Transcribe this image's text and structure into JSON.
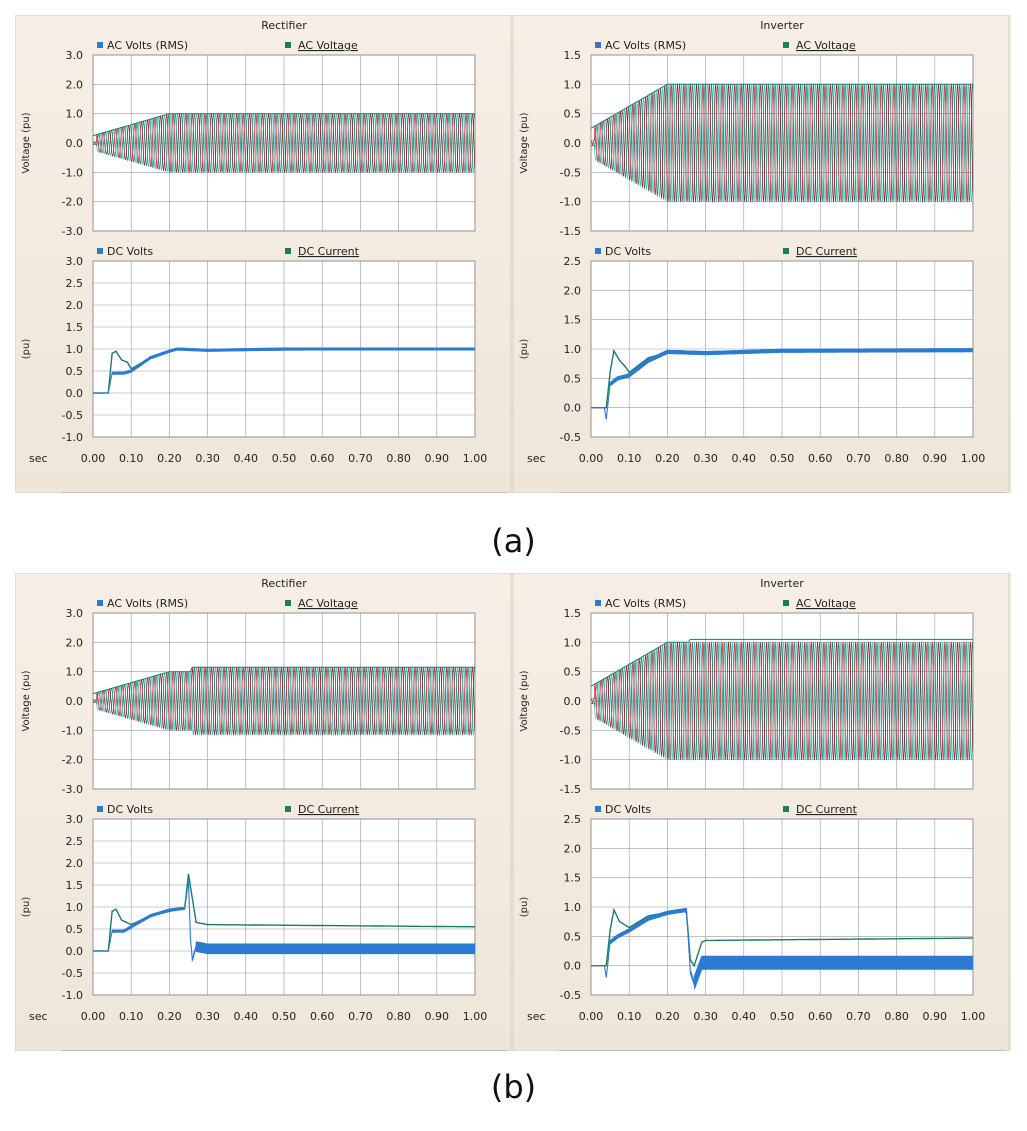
{
  "figure_labels": [
    "(a)",
    "(b)"
  ],
  "colors": {
    "rms": "#2b7bd1",
    "wave_green": "#1e7a63",
    "wave_cyan": "#3bc3c3",
    "wave_red": "#b01020",
    "dc_volts": "#2b7bd1",
    "dc_current": "#1e7a63",
    "grid": "#9a9a9a"
  },
  "chart_data": [
    {
      "type": "line",
      "figure": "(a)",
      "panel": "Rectifier",
      "x_axis": {
        "label": "sec",
        "range": [
          0,
          1.0
        ],
        "ticks": [
          "0.00",
          "0.10",
          "0.20",
          "0.30",
          "0.40",
          "0.50",
          "0.60",
          "0.70",
          "0.80",
          "0.90",
          "1.00"
        ]
      },
      "subplots": [
        {
          "ylabel": "Voltage (pu)",
          "ylim": [
            -3,
            3
          ],
          "yticks": [
            "3.0",
            "2.0",
            "1.0",
            "0.0",
            "-1.0",
            "-2.0",
            "-3.0"
          ],
          "legend": [
            "AC Volts (RMS)",
            "AC Voltage"
          ],
          "series": [
            {
              "name": "AC Volts (RMS)",
              "kind": "rms",
              "steady": 1.0
            },
            {
              "name": "AC Voltage",
              "kind": "ac",
              "amp_steady": 1.0,
              "rise_end": 0.2
            }
          ]
        },
        {
          "ylabel": "(pu)",
          "ylim": [
            -1,
            3
          ],
          "yticks": [
            "3.0",
            "2.5",
            "2.0",
            "1.5",
            "1.0",
            "0.5",
            "0.0",
            "-0.5",
            "-1.0"
          ],
          "legend": [
            "DC Volts",
            "DC Current"
          ],
          "series": [
            {
              "name": "DC Volts",
              "points": [
                [
                  0,
                  0
                ],
                [
                  0.04,
                  0
                ],
                [
                  0.05,
                  0.45
                ],
                [
                  0.08,
                  0.45
                ],
                [
                  0.1,
                  0.5
                ],
                [
                  0.15,
                  0.8
                ],
                [
                  0.2,
                  0.95
                ],
                [
                  0.22,
                  1.0
                ],
                [
                  0.3,
                  0.97
                ],
                [
                  0.5,
                  1.0
                ],
                [
                  1.0,
                  1.0
                ]
              ]
            },
            {
              "name": "DC Current",
              "points": [
                [
                  0,
                  0
                ],
                [
                  0.04,
                  0
                ],
                [
                  0.05,
                  0.9
                ],
                [
                  0.06,
                  0.95
                ],
                [
                  0.075,
                  0.75
                ],
                [
                  0.09,
                  0.7
                ],
                [
                  0.1,
                  0.55
                ],
                [
                  0.15,
                  0.8
                ],
                [
                  0.22,
                  1.0
                ],
                [
                  0.3,
                  0.97
                ],
                [
                  1.0,
                  1.0
                ]
              ]
            }
          ]
        }
      ]
    },
    {
      "type": "line",
      "figure": "(a)",
      "panel": "Inverter",
      "x_axis": {
        "label": "sec",
        "range": [
          0,
          1.0
        ],
        "ticks": [
          "0.00",
          "0.10",
          "0.20",
          "0.30",
          "0.40",
          "0.50",
          "0.60",
          "0.70",
          "0.80",
          "0.90",
          "1.00"
        ]
      },
      "subplots": [
        {
          "ylabel": "Voltage (pu)",
          "ylim": [
            -1.5,
            1.5
          ],
          "yticks": [
            "1.5",
            "1.0",
            "0.5",
            "0.0",
            "-0.5",
            "-1.0",
            "-1.5"
          ],
          "legend": [
            "AC Volts (RMS)",
            "AC Voltage"
          ],
          "series": [
            {
              "name": "AC Volts (RMS)",
              "kind": "rms",
              "steady": 1.0
            },
            {
              "name": "AC Voltage",
              "kind": "ac",
              "amp_steady": 1.0,
              "rise_end": 0.2
            }
          ]
        },
        {
          "ylabel": "(pu)",
          "ylim": [
            -0.5,
            2.5
          ],
          "yticks": [
            "2.5",
            "2.0",
            "1.5",
            "1.0",
            "0.5",
            "0.0",
            "-0.5"
          ],
          "legend": [
            "DC Volts",
            "DC Current"
          ],
          "series": [
            {
              "name": "DC Volts",
              "points": [
                [
                  0,
                  0
                ],
                [
                  0.035,
                  0
                ],
                [
                  0.04,
                  -0.2
                ],
                [
                  0.05,
                  0.4
                ],
                [
                  0.07,
                  0.5
                ],
                [
                  0.1,
                  0.55
                ],
                [
                  0.15,
                  0.8
                ],
                [
                  0.2,
                  0.95
                ],
                [
                  0.3,
                  0.93
                ],
                [
                  0.5,
                  0.97
                ],
                [
                  1.0,
                  0.98
                ]
              ]
            },
            {
              "name": "DC Current",
              "points": [
                [
                  0,
                  0
                ],
                [
                  0.04,
                  0
                ],
                [
                  0.05,
                  0.6
                ],
                [
                  0.06,
                  0.97
                ],
                [
                  0.075,
                  0.8
                ],
                [
                  0.09,
                  0.7
                ],
                [
                  0.1,
                  0.6
                ],
                [
                  0.15,
                  0.85
                ],
                [
                  0.22,
                  0.97
                ],
                [
                  0.3,
                  0.95
                ],
                [
                  1.0,
                  0.98
                ]
              ]
            }
          ]
        }
      ]
    },
    {
      "type": "line",
      "figure": "(b)",
      "panel": "Rectifier",
      "x_axis": {
        "label": "sec",
        "range": [
          0,
          1.0
        ],
        "ticks": [
          "0.00",
          "0.10",
          "0.20",
          "0.30",
          "0.40",
          "0.50",
          "0.60",
          "0.70",
          "0.80",
          "0.90",
          "1.00"
        ]
      },
      "subplots": [
        {
          "ylabel": "Voltage (pu)",
          "ylim": [
            -3,
            3
          ],
          "yticks": [
            "3.0",
            "2.0",
            "1.0",
            "0.0",
            "-1.0",
            "-2.0",
            "-3.0"
          ],
          "legend": [
            "AC Volts (RMS)",
            "AC Voltage"
          ],
          "series": [
            {
              "name": "AC Volts (RMS)",
              "kind": "rms",
              "steady": 1.0,
              "step_at": 0.26,
              "after": 1.15
            },
            {
              "name": "AC Voltage",
              "kind": "ac",
              "amp_steady": 1.0,
              "rise_end": 0.2,
              "step_at": 0.26,
              "after": 1.15
            }
          ]
        },
        {
          "ylabel": "(pu)",
          "ylim": [
            -1,
            3
          ],
          "yticks": [
            "3.0",
            "2.5",
            "2.0",
            "1.5",
            "1.0",
            "0.5",
            "0.0",
            "-0.5",
            "-1.0"
          ],
          "legend": [
            "DC Volts",
            "DC Current"
          ],
          "series": [
            {
              "name": "DC Volts",
              "points": [
                [
                  0,
                  0
                ],
                [
                  0.04,
                  0
                ],
                [
                  0.05,
                  0.45
                ],
                [
                  0.08,
                  0.45
                ],
                [
                  0.1,
                  0.55
                ],
                [
                  0.15,
                  0.8
                ],
                [
                  0.2,
                  0.93
                ],
                [
                  0.24,
                  0.97
                ],
                [
                  0.25,
                  1.6
                ],
                [
                  0.255,
                  0.3
                ],
                [
                  0.26,
                  -0.2
                ],
                [
                  0.27,
                  0.1
                ],
                [
                  0.3,
                  0.05
                ],
                [
                  1.0,
                  0.05
                ]
              ],
              "noise": 0.12
            },
            {
              "name": "DC Current",
              "points": [
                [
                  0,
                  0
                ],
                [
                  0.04,
                  0
                ],
                [
                  0.05,
                  0.9
                ],
                [
                  0.06,
                  0.95
                ],
                [
                  0.075,
                  0.7
                ],
                [
                  0.1,
                  0.6
                ],
                [
                  0.15,
                  0.8
                ],
                [
                  0.24,
                  0.98
                ],
                [
                  0.25,
                  1.75
                ],
                [
                  0.26,
                  1.2
                ],
                [
                  0.27,
                  0.65
                ],
                [
                  0.3,
                  0.6
                ],
                [
                  1.0,
                  0.55
                ]
              ]
            }
          ]
        }
      ]
    },
    {
      "type": "line",
      "figure": "(b)",
      "panel": "Inverter",
      "x_axis": {
        "label": "sec",
        "range": [
          0,
          1.0
        ],
        "ticks": [
          "0.00",
          "0.10",
          "0.20",
          "0.30",
          "0.40",
          "0.50",
          "0.60",
          "0.70",
          "0.80",
          "0.90",
          "1.00"
        ]
      },
      "subplots": [
        {
          "ylabel": "Voltage (pu)",
          "ylim": [
            -1.5,
            1.5
          ],
          "yticks": [
            "1.5",
            "1.0",
            "0.5",
            "0.0",
            "-0.5",
            "-1.0",
            "-1.5"
          ],
          "legend": [
            "AC Volts (RMS)",
            "AC Voltage"
          ],
          "series": [
            {
              "name": "AC Volts (RMS)",
              "kind": "rms",
              "steady": 1.0,
              "step_at": 0.26,
              "after": 1.05
            },
            {
              "name": "AC Voltage",
              "kind": "ac",
              "amp_steady": 1.0,
              "rise_end": 0.2,
              "step_at": 0.26,
              "after": 1.0
            }
          ]
        },
        {
          "ylabel": "(pu)",
          "ylim": [
            -0.5,
            2.5
          ],
          "yticks": [
            "2.5",
            "2.0",
            "1.5",
            "1.0",
            "0.5",
            "0.0",
            "-0.5"
          ],
          "legend": [
            "DC Volts",
            "DC Current"
          ],
          "series": [
            {
              "name": "DC Volts",
              "points": [
                [
                  0,
                  0
                ],
                [
                  0.035,
                  0
                ],
                [
                  0.04,
                  -0.2
                ],
                [
                  0.05,
                  0.4
                ],
                [
                  0.07,
                  0.5
                ],
                [
                  0.1,
                  0.6
                ],
                [
                  0.15,
                  0.8
                ],
                [
                  0.2,
                  0.9
                ],
                [
                  0.25,
                  0.95
                ],
                [
                  0.26,
                  -0.1
                ],
                [
                  0.27,
                  -0.3
                ],
                [
                  0.29,
                  0.05
                ],
                [
                  1.0,
                  0.05
                ]
              ],
              "noise": 0.12
            },
            {
              "name": "DC Current",
              "points": [
                [
                  0,
                  0
                ],
                [
                  0.04,
                  0
                ],
                [
                  0.05,
                  0.6
                ],
                [
                  0.06,
                  0.95
                ],
                [
                  0.075,
                  0.75
                ],
                [
                  0.1,
                  0.65
                ],
                [
                  0.15,
                  0.85
                ],
                [
                  0.24,
                  0.95
                ],
                [
                  0.25,
                  0.9
                ],
                [
                  0.26,
                  0.1
                ],
                [
                  0.27,
                  0.0
                ],
                [
                  0.29,
                  0.4
                ],
                [
                  0.3,
                  0.43
                ],
                [
                  1.0,
                  0.47
                ]
              ]
            }
          ]
        }
      ]
    }
  ]
}
